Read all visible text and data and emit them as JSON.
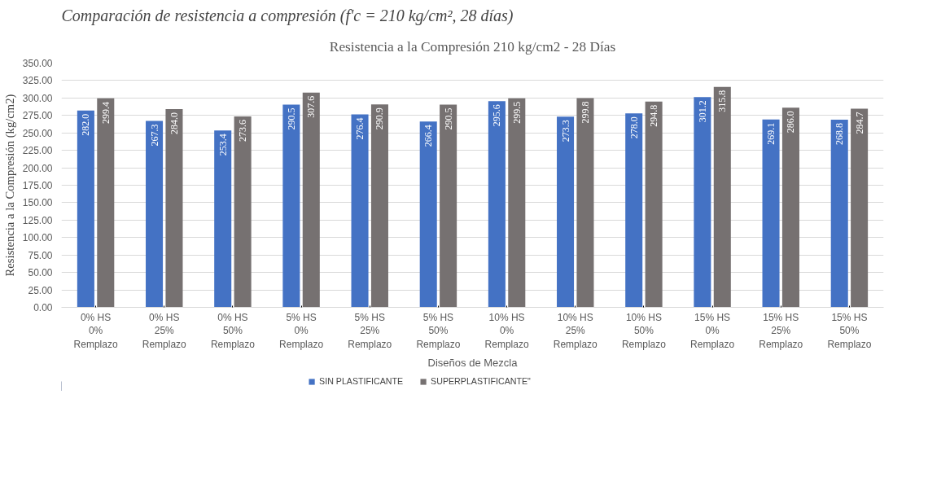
{
  "chart_data": {
    "type": "bar",
    "title": "Resistencia a la Compresión 210 kg/cm2 - 28 Días",
    "annotations": [
      "Comparación de resistencia a compresión (f'c = 210 kg/cm², 28 días)"
    ],
    "xlabel": "Diseños de Mezcla",
    "ylabel": "Resistencia a la Compresión (kg/cm2)",
    "categories": [
      "0% HS\n0%\nRemplazo",
      "0% HS\n25%\nRemplazo",
      "0% HS\n50%\nRemplazo",
      "5% HS\n0%\nRemplazo",
      "5% HS\n25%\nRemplazo",
      "5% HS\n50%\nRemplazo",
      "10% HS\n0%\nRemplazo",
      "10% HS\n25%\nRemplazo",
      "10% HS\n50%\nRemplazo",
      "15% HS\n0%\nRemplazo",
      "15% HS\n25%\nRemplazo",
      "15% HS\n50%\nRemplazo"
    ],
    "series": [
      {
        "name": "SIN PLASTIFICANTE",
        "color": "#4472c4",
        "values": [
          282.0,
          267.3,
          253.4,
          290.5,
          276.4,
          266.4,
          295.6,
          273.3,
          278.0,
          301.2,
          269.1,
          268.8
        ],
        "value_labels": [
          "282.0",
          "267.3",
          "253.4",
          "290.5",
          "276.4",
          "266.4",
          "295.6",
          "273.3",
          "278.0",
          "301.2",
          "269.1",
          "268.8"
        ]
      },
      {
        "name": "SUPERPLASTIFICANTE\"",
        "color": "#767171",
        "values": [
          299.4,
          284.0,
          273.6,
          307.6,
          290.9,
          290.5,
          299.5,
          299.8,
          294.8,
          315.8,
          286.0,
          284.7
        ],
        "value_labels": [
          "299.4",
          "284.0",
          "273.6",
          "307.6",
          "290.9",
          "290.5",
          "299.5",
          "299.8",
          "294.8",
          "315.8",
          "286.0",
          "284.7"
        ]
      }
    ],
    "ylim": [
      0,
      350
    ],
    "yticks": [
      {
        "value": 0,
        "label": "0.00"
      },
      {
        "value": 25,
        "label": "25.00"
      },
      {
        "value": 50,
        "label": "50.00"
      },
      {
        "value": 75,
        "label": "75.00"
      },
      {
        "value": 100,
        "label": "100.00"
      },
      {
        "value": 125,
        "label": "125.00"
      },
      {
        "value": 150,
        "label": "150.00"
      },
      {
        "value": 175,
        "label": "175.00"
      },
      {
        "value": 200,
        "label": "200.00"
      },
      {
        "value": 225,
        "label": "225.00"
      },
      {
        "value": 250,
        "label": "250.00"
      },
      {
        "value": 275,
        "label": "275.00"
      },
      {
        "value": 300,
        "label": "300.00"
      },
      {
        "value": 325,
        "label": "325.00"
      },
      {
        "value": 350,
        "label": "350.00"
      }
    ],
    "grid": "y",
    "legend": "bottom"
  }
}
